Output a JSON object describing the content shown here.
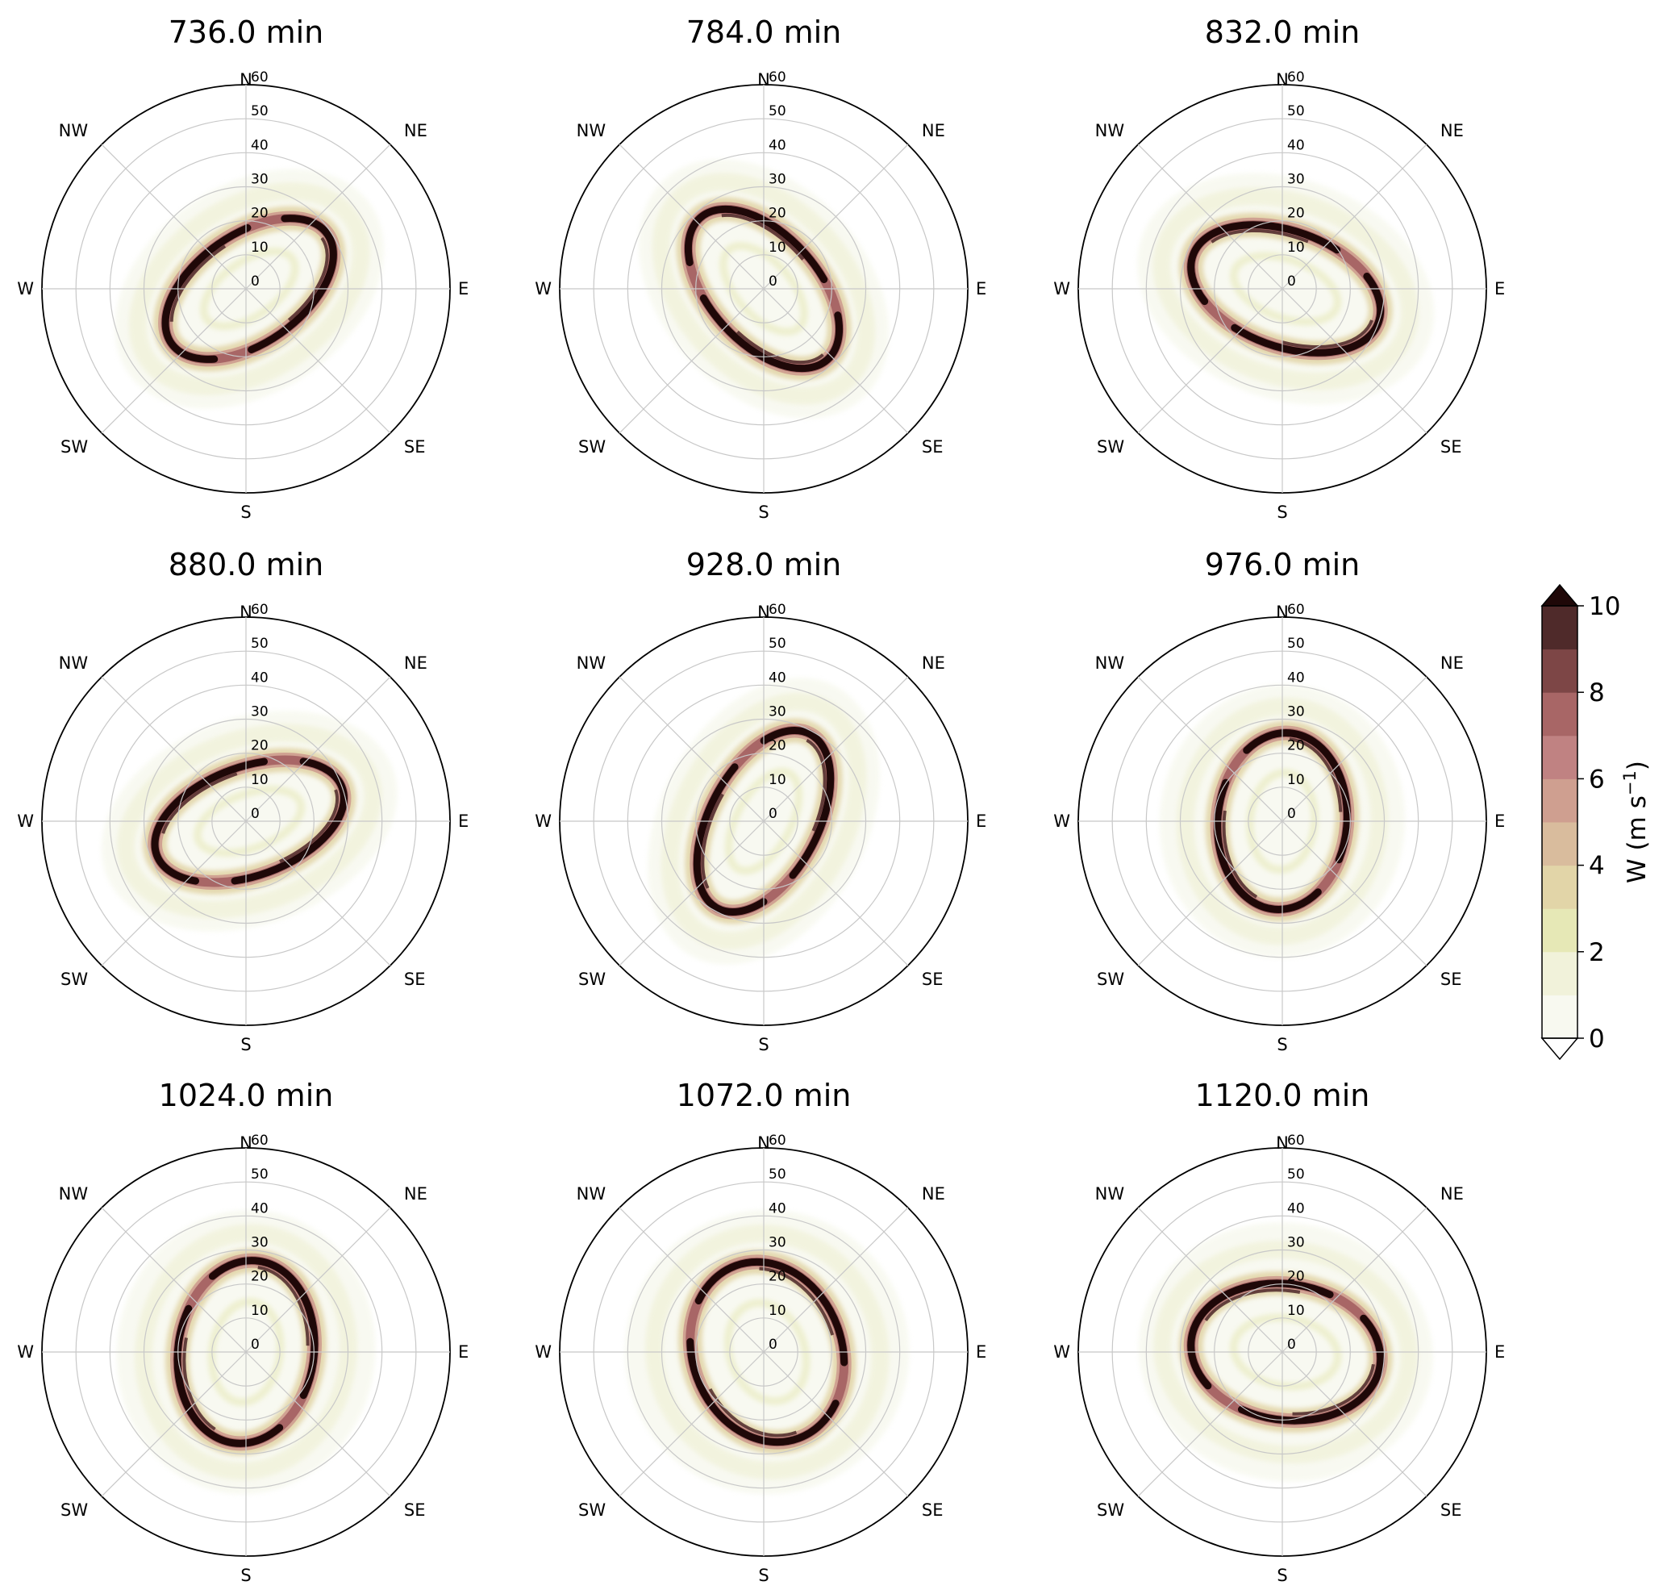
{
  "chart_data": {
    "type": "polar-contour",
    "panels": [
      {
        "title": "736.0 min",
        "ring": {
          "a": 28,
          "b": 16,
          "tilt": -35,
          "cx": 1,
          "cy": 0
        }
      },
      {
        "title": "784.0 min",
        "ring": {
          "a": 28,
          "b": 16,
          "tilt": 48,
          "cx": 0,
          "cy": 0
        }
      },
      {
        "title": "832.0 min",
        "ring": {
          "a": 29,
          "b": 17,
          "tilt": 20,
          "cx": 1,
          "cy": 0
        }
      },
      {
        "title": "880.0 min",
        "ring": {
          "a": 29,
          "b": 16,
          "tilt": -20,
          "cx": 1,
          "cy": 0
        }
      },
      {
        "title": "928.0 min",
        "ring": {
          "a": 29,
          "b": 16,
          "tilt": -62,
          "cx": 0,
          "cy": 0
        }
      },
      {
        "title": "976.0 min",
        "ring": {
          "a": 26,
          "b": 19,
          "tilt": -85,
          "cx": 0,
          "cy": 0
        }
      },
      {
        "title": "1024.0 min",
        "ring": {
          "a": 27,
          "b": 20,
          "tilt": -82,
          "cx": 0,
          "cy": 0
        }
      },
      {
        "title": "1072.0 min",
        "ring": {
          "a": 27,
          "b": 22,
          "tilt": 70,
          "cx": 1,
          "cy": 0
        }
      },
      {
        "title": "1120.0 min",
        "ring": {
          "a": 28,
          "b": 20,
          "tilt": 8,
          "cx": 1,
          "cy": 0
        }
      }
    ],
    "directions": [
      "N",
      "NE",
      "E",
      "SE",
      "S",
      "SW",
      "W",
      "NW"
    ],
    "radial_ticks": [
      "0",
      "10",
      "20",
      "30",
      "40",
      "50",
      "60"
    ],
    "radial_range": [
      0,
      60
    ],
    "grid": true,
    "colorbar": {
      "label": "W (m s",
      "label_sup": "−1",
      "label_close": ")",
      "ticks": [
        "0",
        "2",
        "4",
        "6",
        "8",
        "10"
      ],
      "levels": [
        0,
        1,
        2,
        3,
        4,
        5,
        6,
        7,
        8,
        9,
        10
      ],
      "colors": [
        "#f8f9f0",
        "#f1f2da",
        "#e6e8b6",
        "#e2d5a8",
        "#d9bc9d",
        "#cf9f90",
        "#c08282",
        "#a86666",
        "#7d4646",
        "#4f2a2a"
      ],
      "extend": "both",
      "over_color": "#1f0808"
    }
  }
}
